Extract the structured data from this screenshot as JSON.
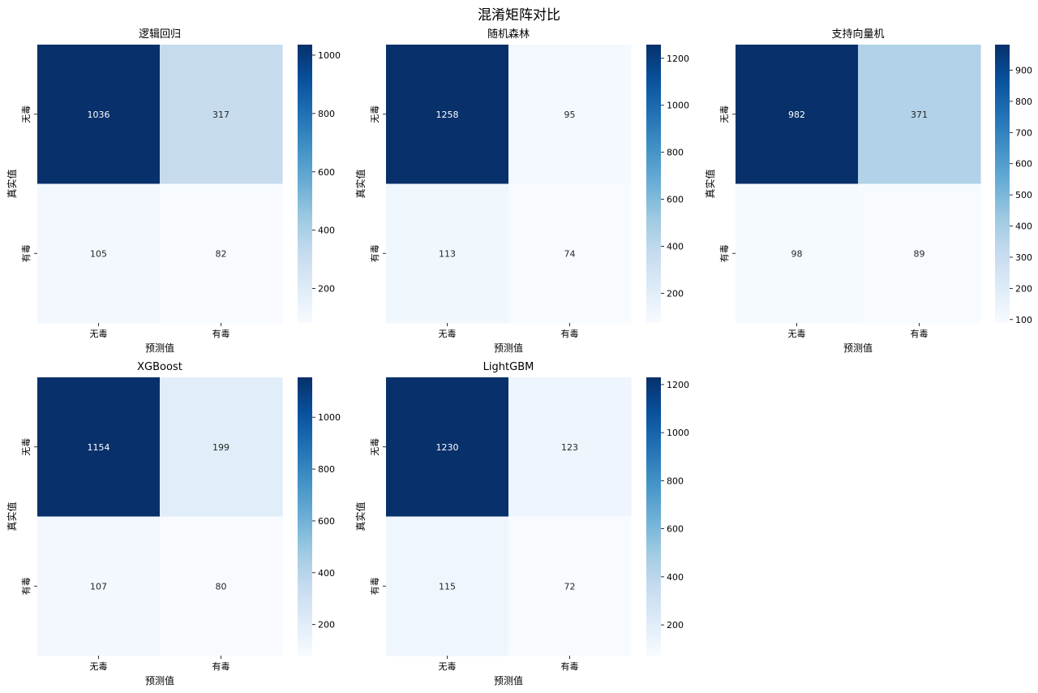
{
  "figure": {
    "title": "混淆矩阵对比"
  },
  "colormap": [
    "#f7fbff",
    "#deebf7",
    "#c6dbef",
    "#9ecae1",
    "#6baed6",
    "#4292c6",
    "#2171b5",
    "#08519c",
    "#08306b"
  ],
  "chart_data": [
    {
      "type": "heatmap",
      "title": "逻辑回归",
      "xlabel": "预测值",
      "ylabel": "真实值",
      "x_categories": [
        "无毒",
        "有毒"
      ],
      "y_categories": [
        "无毒",
        "有毒"
      ],
      "values": [
        [
          1036,
          317
        ],
        [
          105,
          82
        ]
      ],
      "colorbar": {
        "vmin": 82,
        "vmax": 1036,
        "ticks": [
          200,
          400,
          600,
          800,
          1000
        ]
      }
    },
    {
      "type": "heatmap",
      "title": "随机森林",
      "xlabel": "预测值",
      "ylabel": "真实值",
      "x_categories": [
        "无毒",
        "有毒"
      ],
      "y_categories": [
        "无毒",
        "有毒"
      ],
      "values": [
        [
          1258,
          95
        ],
        [
          113,
          74
        ]
      ],
      "colorbar": {
        "vmin": 74,
        "vmax": 1258,
        "ticks": [
          200,
          400,
          600,
          800,
          1000,
          1200
        ]
      }
    },
    {
      "type": "heatmap",
      "title": "支持向量机",
      "xlabel": "预测值",
      "ylabel": "真实值",
      "x_categories": [
        "无毒",
        "有毒"
      ],
      "y_categories": [
        "无毒",
        "有毒"
      ],
      "values": [
        [
          982,
          371
        ],
        [
          98,
          89
        ]
      ],
      "colorbar": {
        "vmin": 89,
        "vmax": 982,
        "ticks": [
          100,
          200,
          300,
          400,
          500,
          600,
          700,
          800,
          900
        ]
      }
    },
    {
      "type": "heatmap",
      "title": "XGBoost",
      "xlabel": "预测值",
      "ylabel": "真实值",
      "x_categories": [
        "无毒",
        "有毒"
      ],
      "y_categories": [
        "无毒",
        "有毒"
      ],
      "values": [
        [
          1154,
          199
        ],
        [
          107,
          80
        ]
      ],
      "colorbar": {
        "vmin": 80,
        "vmax": 1154,
        "ticks": [
          200,
          400,
          600,
          800,
          1000
        ]
      }
    },
    {
      "type": "heatmap",
      "title": "LightGBM",
      "xlabel": "预测值",
      "ylabel": "真实值",
      "x_categories": [
        "无毒",
        "有毒"
      ],
      "y_categories": [
        "无毒",
        "有毒"
      ],
      "values": [
        [
          1230,
          123
        ],
        [
          115,
          72
        ]
      ],
      "colorbar": {
        "vmin": 72,
        "vmax": 1230,
        "ticks": [
          200,
          400,
          600,
          800,
          1000,
          1200
        ]
      }
    }
  ]
}
